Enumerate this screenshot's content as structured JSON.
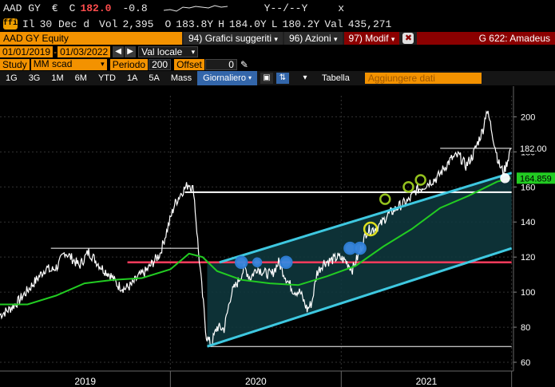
{
  "quote": {
    "ticker": "AAD GY",
    "currency": "€",
    "last_label": "C",
    "last": "182.0",
    "change": "-0.8",
    "bid_ask": "Y--/--Y",
    "x_mark": "x",
    "flag": "Il",
    "date": "30 Dec d",
    "vol_label": "Vol",
    "volume": "2,395",
    "open_label": "O",
    "open": "183.8Y",
    "high_label": "H",
    "high": "184.0Y",
    "low_label": "L",
    "low": "180.2Y",
    "val_label": "Val",
    "value": "435,271"
  },
  "toolbar": {
    "security": "AAD GY Equity",
    "menu1_num": "94)",
    "menu1": "Grafici suggeriti",
    "menu2_num": "96)",
    "menu2": "Azioni",
    "menu3_num": "97)",
    "menu3": "Modif",
    "page": "G 622: Amadeus"
  },
  "range": {
    "start": "01/01/2019",
    "end": "01/03/2022",
    "currency_mode": "Val locale"
  },
  "study": {
    "label": "Study",
    "value": "MM scad",
    "period_label": "Periodo",
    "period": "200",
    "offset_label": "Offset",
    "offset": "0"
  },
  "periods": [
    "1G",
    "3G",
    "1M",
    "6M",
    "YTD",
    "1A",
    "5A",
    "Mass"
  ],
  "frequency": "Giornaliero",
  "table_label": "Tabella",
  "add_data_placeholder": "Aggiungere dati",
  "colors": {
    "accent": "#f39200",
    "price": "#ffffff",
    "ma": "#22cc22",
    "channel": "#3ec8e0",
    "support": "#ff3b5c",
    "channel_fill": "#0f3a3f"
  },
  "chart_data": {
    "type": "line",
    "xlabel": "",
    "ylabel": "",
    "x_ticks": [
      "2019",
      "2020",
      "2021"
    ],
    "y_ticks": [
      60,
      80,
      100,
      120,
      140,
      160,
      180,
      200
    ],
    "ylim": [
      55,
      212
    ],
    "last_price_tag": "182.00",
    "ma_tag": "164.859",
    "ma_period": 200,
    "series": [
      {
        "name": "",
        "role": "price",
        "points": [
          [
            "2019-01-01",
            87
          ],
          [
            "2019-01-20",
            90
          ],
          [
            "2019-02-10",
            95
          ],
          [
            "2019-03-01",
            101
          ],
          [
            "2019-03-20",
            107
          ],
          [
            "2019-04-10",
            114
          ],
          [
            "2019-04-20",
            112
          ],
          [
            "2019-05-05",
            115
          ],
          [
            "2019-05-20",
            123
          ],
          [
            "2019-06-05",
            119
          ],
          [
            "2019-06-20",
            115
          ],
          [
            "2019-07-10",
            123
          ],
          [
            "2019-07-25",
            118
          ],
          [
            "2019-08-10",
            113
          ],
          [
            "2019-08-25",
            110
          ],
          [
            "2019-09-10",
            104
          ],
          [
            "2019-09-25",
            102
          ],
          [
            "2019-10-10",
            104
          ],
          [
            "2019-10-25",
            109
          ],
          [
            "2019-11-10",
            112
          ],
          [
            "2019-11-25",
            117
          ],
          [
            "2019-12-10",
            122
          ],
          [
            "2019-12-31",
            141
          ],
          [
            "2020-01-10",
            150
          ],
          [
            "2020-01-25",
            157
          ],
          [
            "2020-02-10",
            162
          ],
          [
            "2020-02-20",
            158
          ],
          [
            "2020-03-01",
            124
          ],
          [
            "2020-03-10",
            98
          ],
          [
            "2020-03-18",
            75
          ],
          [
            "2020-03-28",
            70
          ],
          [
            "2020-04-10",
            80
          ],
          [
            "2020-04-25",
            79
          ],
          [
            "2020-05-10",
            99
          ],
          [
            "2020-05-25",
            106
          ],
          [
            "2020-06-08",
            114
          ],
          [
            "2020-06-20",
            108
          ],
          [
            "2020-07-05",
            114
          ],
          [
            "2020-07-20",
            111
          ],
          [
            "2020-08-05",
            110
          ],
          [
            "2020-08-20",
            117
          ],
          [
            "2020-09-05",
            108
          ],
          [
            "2020-09-20",
            101
          ],
          [
            "2020-10-05",
            100
          ],
          [
            "2020-10-20",
            90
          ],
          [
            "2020-10-30",
            94
          ],
          [
            "2020-11-10",
            111
          ],
          [
            "2020-11-25",
            117
          ],
          [
            "2020-12-10",
            118
          ],
          [
            "2020-12-25",
            120
          ],
          [
            "2021-01-10",
            118
          ],
          [
            "2021-01-25",
            113
          ],
          [
            "2021-02-10",
            123
          ],
          [
            "2021-02-25",
            135
          ],
          [
            "2021-03-10",
            136
          ],
          [
            "2021-03-25",
            138
          ],
          [
            "2021-04-10",
            144
          ],
          [
            "2021-04-25",
            147
          ],
          [
            "2021-05-10",
            150
          ],
          [
            "2021-05-25",
            152
          ],
          [
            "2021-06-10",
            158
          ],
          [
            "2021-06-25",
            160
          ],
          [
            "2021-07-10",
            163
          ],
          [
            "2021-07-25",
            165
          ],
          [
            "2021-08-10",
            171
          ],
          [
            "2021-08-25",
            176
          ],
          [
            "2021-09-10",
            178
          ],
          [
            "2021-09-25",
            172
          ],
          [
            "2021-10-10",
            178
          ],
          [
            "2021-10-20",
            185
          ],
          [
            "2021-11-01",
            193
          ],
          [
            "2021-11-08",
            204
          ],
          [
            "2021-11-15",
            198
          ],
          [
            "2021-11-25",
            185
          ],
          [
            "2021-12-05",
            173
          ],
          [
            "2021-12-15",
            168
          ],
          [
            "2021-12-22",
            174
          ],
          [
            "2021-12-30",
            182
          ]
        ]
      },
      {
        "name": "",
        "role": "moving_average",
        "points": [
          [
            "2019-01-01",
            93
          ],
          [
            "2019-03-01",
            93
          ],
          [
            "2019-05-01",
            98
          ],
          [
            "2019-07-01",
            105
          ],
          [
            "2019-09-01",
            107
          ],
          [
            "2019-11-01",
            108
          ],
          [
            "2020-01-01",
            113
          ],
          [
            "2020-02-10",
            122
          ],
          [
            "2020-03-10",
            120
          ],
          [
            "2020-04-10",
            112
          ],
          [
            "2020-06-01",
            107
          ],
          [
            "2020-08-01",
            105
          ],
          [
            "2020-10-01",
            104
          ],
          [
            "2020-12-01",
            109
          ],
          [
            "2021-02-01",
            115
          ],
          [
            "2021-04-01",
            126
          ],
          [
            "2021-06-01",
            136
          ],
          [
            "2021-08-01",
            148
          ],
          [
            "2021-10-01",
            155
          ],
          [
            "2021-12-01",
            163
          ],
          [
            "2021-12-30",
            165
          ]
        ]
      }
    ],
    "annotations": {
      "horizontal_lines": [
        {
          "role": "support",
          "y": 117,
          "from": "2019-10-01",
          "to": "2022-01-01"
        },
        {
          "role": "resistance",
          "y": 157,
          "from": "2020-02-01",
          "to": "2022-01-01"
        },
        {
          "role": "range-low",
          "y": 69,
          "from": "2020-03-20",
          "to": "2022-01-01"
        },
        {
          "role": "range-high",
          "y": 125,
          "from": "2019-04-20",
          "to": "2020-03-01"
        },
        {
          "role": "last-price",
          "y": 182,
          "from": "2021-08-01",
          "to": "2022-01-01"
        }
      ],
      "channel": {
        "upper": [
          [
            "2020-04-15",
            117
          ],
          [
            "2022-01-01",
            168
          ]
        ],
        "lower": [
          [
            "2020-03-20",
            69
          ],
          [
            "2022-01-01",
            125
          ]
        ]
      },
      "markers": [
        {
          "date": "2020-06-01",
          "y": 117,
          "style": "blue"
        },
        {
          "date": "2020-07-05",
          "y": 117,
          "style": "blue-small"
        },
        {
          "date": "2020-09-05",
          "y": 117,
          "style": "blue"
        },
        {
          "date": "2021-01-20",
          "y": 125,
          "style": "blue"
        },
        {
          "date": "2021-02-10",
          "y": 125,
          "style": "blue"
        },
        {
          "date": "2021-03-05",
          "y": 136,
          "style": "yellow"
        },
        {
          "date": "2021-04-05",
          "y": 153,
          "style": "green"
        },
        {
          "date": "2021-05-25",
          "y": 160,
          "style": "green"
        },
        {
          "date": "2021-06-20",
          "y": 164,
          "style": "green"
        },
        {
          "date": "2021-12-18",
          "y": 165,
          "style": "white"
        }
      ]
    }
  }
}
